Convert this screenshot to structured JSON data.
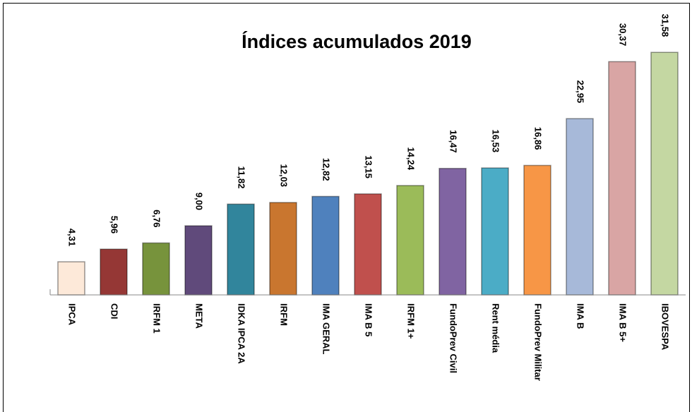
{
  "chart_data": {
    "type": "bar",
    "title": "Índices acumulados 2019",
    "categories": [
      "IPCA",
      "CDI",
      "IRFM 1",
      "META",
      "IDKA IPCA 2A",
      "IRFM",
      "IMA GERAL",
      "IMA B 5",
      "IRFM 1+",
      "FundoPrev Civil",
      "Rent média",
      "FundoPrev Militar",
      "IMA B",
      "IMA B 5+",
      "IBOVESPA"
    ],
    "values": [
      4.31,
      5.96,
      6.76,
      9.0,
      11.82,
      12.03,
      12.82,
      13.15,
      14.24,
      16.47,
      16.53,
      16.86,
      22.95,
      30.37,
      31.58
    ],
    "value_labels": [
      "4,31",
      "5,96",
      "6,76",
      "9,00",
      "11,82",
      "12,03",
      "12,82",
      "13,15",
      "14,24",
      "16,47",
      "16,53",
      "16,86",
      "22,95",
      "30,37",
      "31,58"
    ],
    "colors": [
      "#fde9d9",
      "#953735",
      "#77933c",
      "#604a7b",
      "#31859c",
      "#c9762f",
      "#4f81bd",
      "#c0504d",
      "#9bbb59",
      "#8064a2",
      "#4bacc6",
      "#f79646",
      "#a7b9d9",
      "#d9a5a4",
      "#c4d7a2"
    ],
    "ylim": [
      0,
      35
    ]
  }
}
